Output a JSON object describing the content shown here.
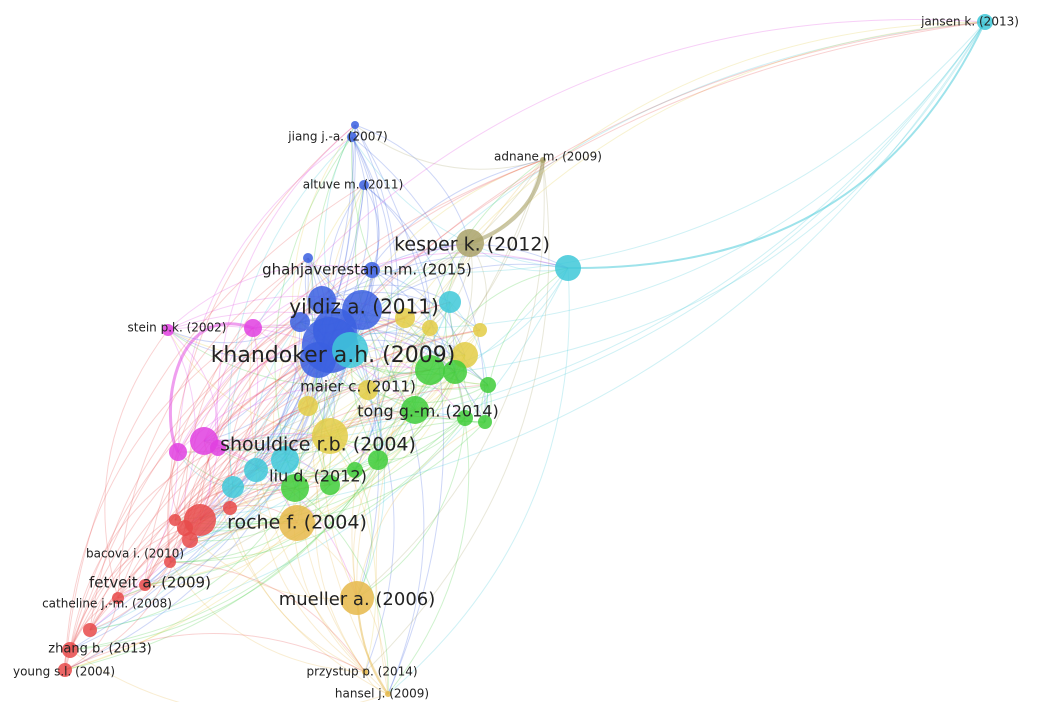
{
  "nodes": [
    {
      "label": "jansen k. (2013)"
    },
    {
      "label": "jiang j.-a. (2007)"
    },
    {
      "label": "adnane m. (2009)"
    },
    {
      "label": "altuve m. (2011)"
    },
    {
      "label": "kesper k. (2012)"
    },
    {
      "label": "ghahjaverestan n.m. (2015)"
    },
    {
      "label": "yildiz a. (2011)"
    },
    {
      "label": "stein p.k. (2002)"
    },
    {
      "label": "khandoker a.h. (2009)"
    },
    {
      "label": "maier c. (2011)"
    },
    {
      "label": "tong g.-m. (2014)"
    },
    {
      "label": "shouldice r.b. (2004)"
    },
    {
      "label": "liu d. (2012)"
    },
    {
      "label": "roche f. (2004)"
    },
    {
      "label": "bacova i. (2010)"
    },
    {
      "label": "fetveit a. (2009)"
    },
    {
      "label": "catheline j.-m. (2008)"
    },
    {
      "label": "mueller a. (2006)"
    },
    {
      "label": "zhang b. (2013)"
    },
    {
      "label": "young s.l. (2004)"
    },
    {
      "label": "przystup p. (2014)"
    },
    {
      "label": "hansel j. (2009)"
    }
  ]
}
